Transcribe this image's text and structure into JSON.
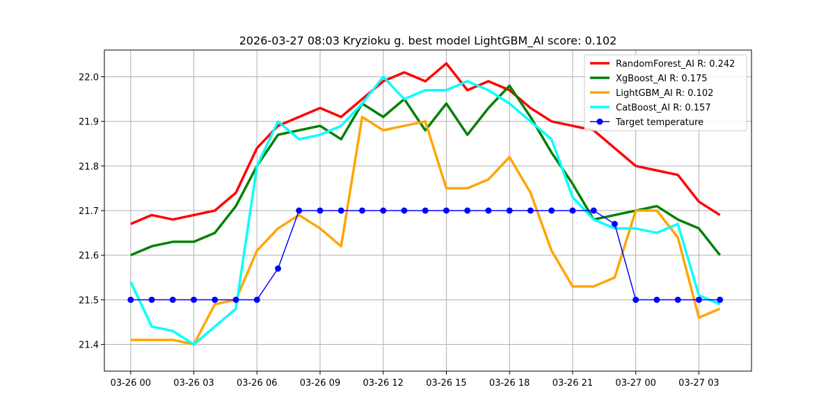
{
  "chart_data": {
    "type": "line",
    "title": "2026-03-27 08:03 Kryzioku g. best model LightGBM_AI score: 0.102",
    "xlabel": "",
    "ylabel": "",
    "x": [
      "2026-03-26 00:00",
      "2026-03-26 01:00",
      "2026-03-26 02:00",
      "2026-03-26 03:00",
      "2026-03-26 04:00",
      "2026-03-26 05:00",
      "2026-03-26 06:00",
      "2026-03-26 07:00",
      "2026-03-26 08:00",
      "2026-03-26 09:00",
      "2026-03-26 10:00",
      "2026-03-26 11:00",
      "2026-03-26 12:00",
      "2026-03-26 13:00",
      "2026-03-26 14:00",
      "2026-03-26 15:00",
      "2026-03-26 16:00",
      "2026-03-26 17:00",
      "2026-03-26 18:00",
      "2026-03-26 19:00",
      "2026-03-26 20:00",
      "2026-03-26 21:00",
      "2026-03-26 22:00",
      "2026-03-26 23:00",
      "2026-03-27 00:00",
      "2026-03-27 01:00",
      "2026-03-27 02:00",
      "2026-03-27 03:00",
      "2026-03-27 04:00"
    ],
    "xlim": [
      "2026-03-25 22:45",
      "2026-03-27 05:30"
    ],
    "ylim": [
      21.34,
      22.06
    ],
    "x_ticks": [
      "03-26 00",
      "03-26 03",
      "03-26 06",
      "03-26 09",
      "03-26 12",
      "03-26 15",
      "03-26 18",
      "03-26 21",
      "03-27 00",
      "03-27 03"
    ],
    "y_ticks": [
      "21.4",
      "21.5",
      "21.6",
      "21.7",
      "21.8",
      "21.9",
      "22.0"
    ],
    "grid": true,
    "legend_position": "top-right",
    "series": [
      {
        "name": "RandomForest_AI R: 0.242",
        "color": "#ff0000",
        "marker": false,
        "values": [
          21.67,
          21.69,
          21.68,
          21.69,
          21.7,
          21.74,
          21.84,
          21.89,
          21.91,
          21.93,
          21.91,
          21.95,
          21.99,
          22.01,
          21.99,
          22.03,
          21.97,
          21.99,
          21.97,
          21.93,
          21.9,
          21.89,
          21.88,
          21.84,
          21.8,
          21.79,
          21.78,
          21.72,
          21.69
        ]
      },
      {
        "name": "XgBoost_AI R: 0.175",
        "color": "#008000",
        "marker": false,
        "values": [
          21.6,
          21.62,
          21.63,
          21.63,
          21.65,
          21.71,
          21.8,
          21.87,
          21.88,
          21.89,
          21.86,
          21.94,
          21.91,
          21.95,
          21.88,
          21.94,
          21.87,
          21.93,
          21.98,
          21.91,
          21.83,
          21.76,
          21.68,
          21.69,
          21.7,
          21.71,
          21.68,
          21.66,
          21.6
        ]
      },
      {
        "name": "LightGBM_AI R: 0.102",
        "color": "#ffa500",
        "marker": false,
        "values": [
          21.41,
          21.41,
          21.41,
          21.4,
          21.49,
          21.5,
          21.61,
          21.66,
          21.69,
          21.66,
          21.62,
          21.91,
          21.88,
          21.89,
          21.9,
          21.75,
          21.75,
          21.77,
          21.82,
          21.74,
          21.61,
          21.53,
          21.53,
          21.55,
          21.7,
          21.7,
          21.64,
          21.46,
          21.48
        ]
      },
      {
        "name": "CatBoost_AI R: 0.157",
        "color": "#00ffff",
        "marker": false,
        "values": [
          21.54,
          21.44,
          21.43,
          21.4,
          21.44,
          21.48,
          21.8,
          21.9,
          21.86,
          21.87,
          21.89,
          21.94,
          22.0,
          21.95,
          21.97,
          21.97,
          21.99,
          21.97,
          21.94,
          21.9,
          21.86,
          21.73,
          21.68,
          21.66,
          21.66,
          21.65,
          21.67,
          21.51,
          21.49
        ]
      },
      {
        "name": "Target temperature",
        "color": "#0000ff",
        "marker": true,
        "values": [
          21.5,
          21.5,
          21.5,
          21.5,
          21.5,
          21.5,
          21.5,
          21.57,
          21.7,
          21.7,
          21.7,
          21.7,
          21.7,
          21.7,
          21.7,
          21.7,
          21.7,
          21.7,
          21.7,
          21.7,
          21.7,
          21.7,
          21.7,
          21.67,
          21.5,
          21.5,
          21.5,
          21.5,
          21.5
        ]
      }
    ]
  }
}
